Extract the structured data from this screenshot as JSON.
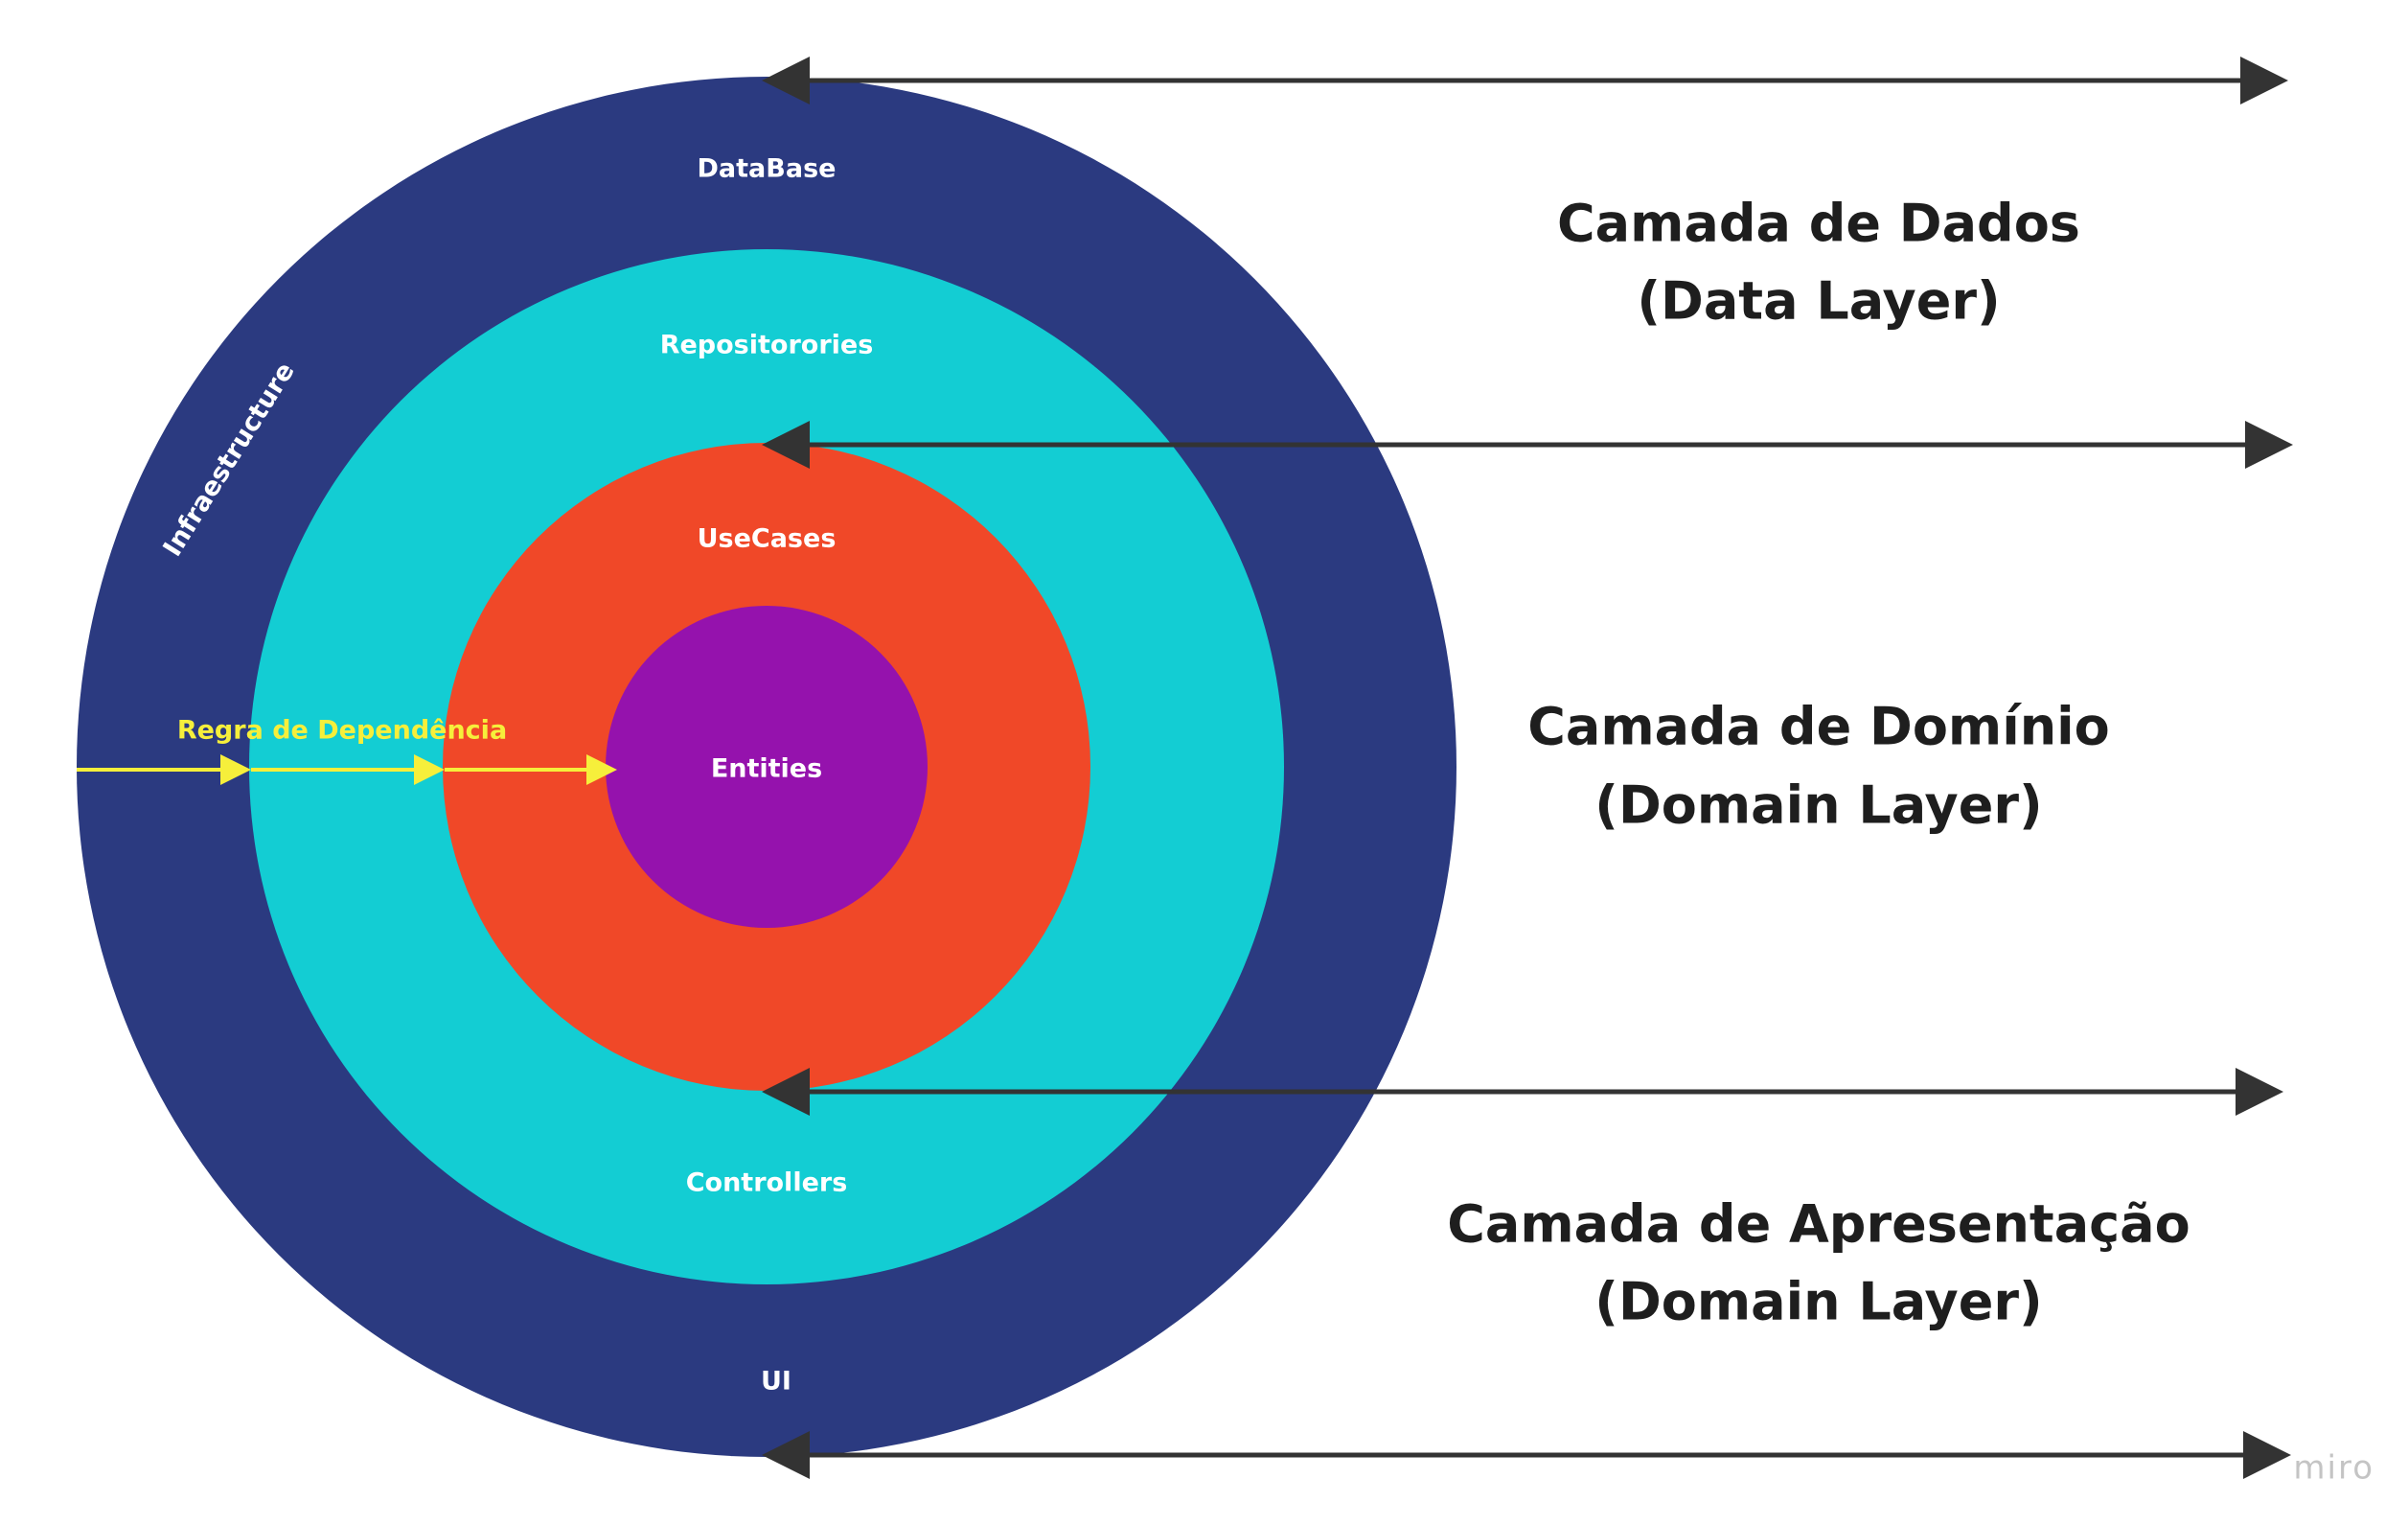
{
  "colors": {
    "infrastructure": "#2b3a80",
    "adapters": "#13cdd3",
    "usecases": "#f04828",
    "entities": "#9512ad",
    "ring_text": "#ffffff",
    "dependency_rule": "#f6ef3b",
    "connector": "#333333",
    "title_text": "#1e1e1e",
    "brand": "#c4c4c4"
  },
  "rings": {
    "infrastructure_label": "Infraestructure",
    "database_label": "DataBase",
    "ui_label": "UI",
    "repositories_label": "Repositorories",
    "controllers_label": "Controllers",
    "usecases_label": "UseCases",
    "entities_label": "Entities"
  },
  "dependency_rule": {
    "label": "Regra de Dependência"
  },
  "layers": [
    {
      "line1": "Camada de Dados",
      "line2": "(Data Layer)"
    },
    {
      "line1": "Camada de Domínio",
      "line2": "(Domain Layer)"
    },
    {
      "line1": "Camada de Apresentação",
      "line2": "(Domain Layer)"
    }
  ],
  "brand": {
    "logo_text": "miro"
  }
}
